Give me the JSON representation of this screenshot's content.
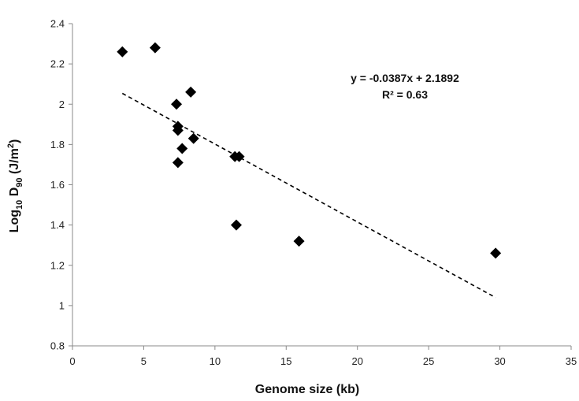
{
  "chart_data": {
    "type": "scatter",
    "xlabel": "Genome size (kb)",
    "ylabel": "Log10 D90 (J/m2)",
    "ylabel_parts": {
      "base": "Log",
      "sub1": "10",
      "mid": " D",
      "sub2": "90",
      "tail1": " (J/m",
      "sup": "2",
      "tail2": ")"
    },
    "xlim": [
      0,
      35
    ],
    "ylim": [
      0.8,
      2.4
    ],
    "x_ticks": [
      "0",
      "5",
      "10",
      "15",
      "20",
      "25",
      "30",
      "35"
    ],
    "y_ticks": [
      "0.8",
      "1",
      "1.2",
      "1.4",
      "1.6",
      "1.8",
      "2",
      "2.2",
      "2.4"
    ],
    "grid": false,
    "marker": "diamond",
    "marker_color": "#000000",
    "series": [
      {
        "points": [
          {
            "x": 3.5,
            "y": 2.26
          },
          {
            "x": 5.8,
            "y": 2.28
          },
          {
            "x": 7.3,
            "y": 2.0
          },
          {
            "x": 7.4,
            "y": 1.89
          },
          {
            "x": 7.4,
            "y": 1.87
          },
          {
            "x": 7.4,
            "y": 1.71
          },
          {
            "x": 7.7,
            "y": 1.78
          },
          {
            "x": 8.3,
            "y": 2.06
          },
          {
            "x": 8.5,
            "y": 1.83
          },
          {
            "x": 11.4,
            "y": 1.74
          },
          {
            "x": 11.7,
            "y": 1.74
          },
          {
            "x": 11.5,
            "y": 1.4
          },
          {
            "x": 15.9,
            "y": 1.32
          },
          {
            "x": 29.7,
            "y": 1.26
          }
        ]
      }
    ],
    "trendline": {
      "style": "dashed",
      "slope": -0.0387,
      "intercept": 2.1892,
      "x_range": [
        3.5,
        29.7
      ],
      "equation_label": "y = -0.0387x + 2.1892",
      "r2_label": "R² = 0.63"
    }
  }
}
